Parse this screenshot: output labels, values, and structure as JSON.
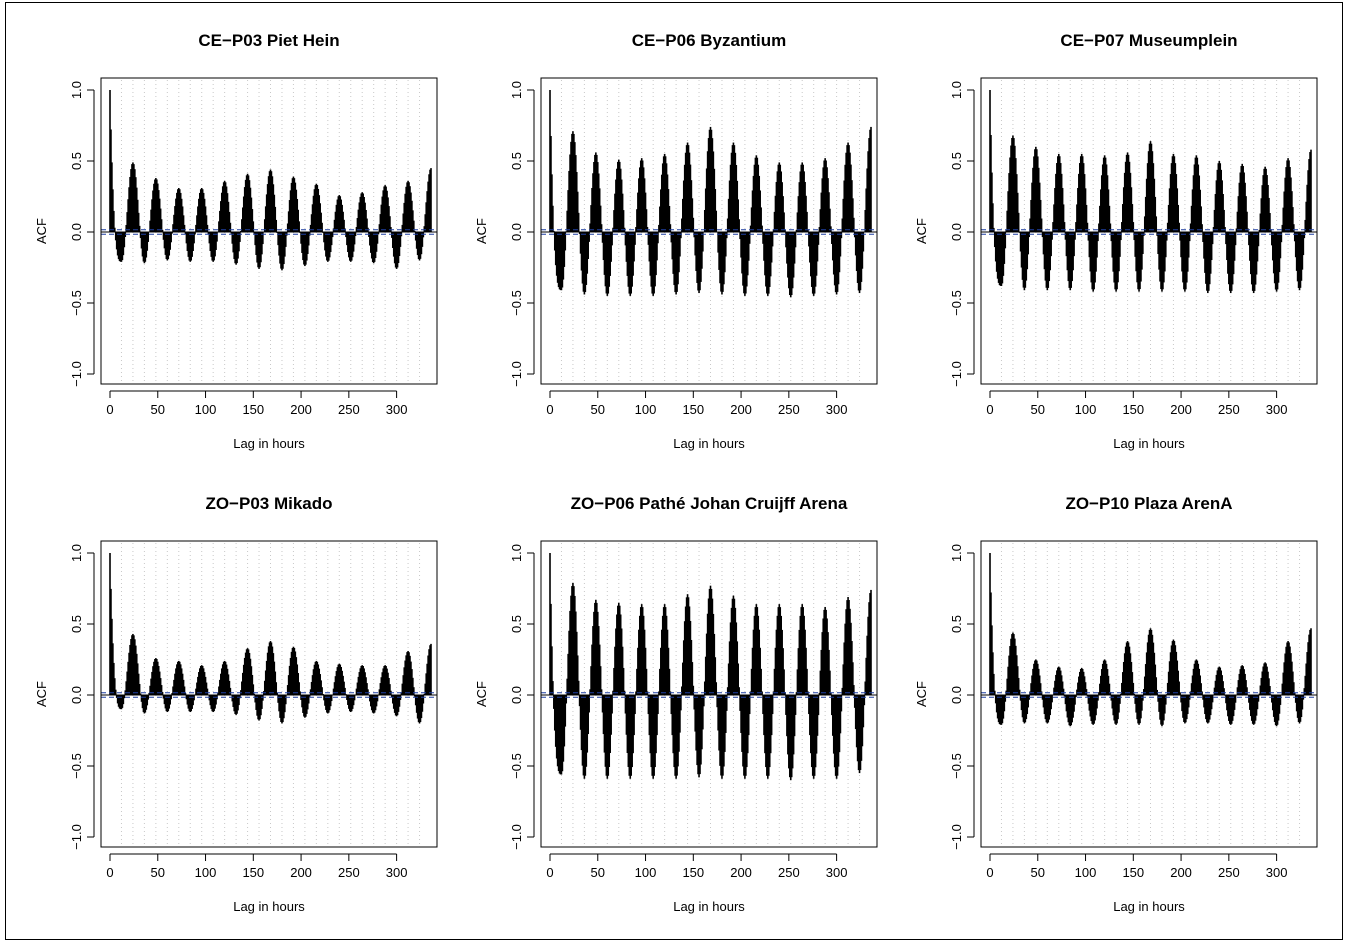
{
  "figure": {
    "xlabel": "Lag in hours",
    "ylabel": "ACF",
    "x_ticks": [
      "0",
      "50",
      "100",
      "150",
      "200",
      "250",
      "300"
    ],
    "y_ticks": [
      "-1.0",
      "-0.5",
      "0.0",
      "0.5",
      "1.0"
    ]
  },
  "colors": {
    "bars": "#000000",
    "zero_line": "#000000",
    "confidence_band": "#1f3fa0",
    "grid": "#c8c8c8"
  },
  "chart_data": [
    {
      "type": "bar",
      "title": "CE−P03 Piet Hein",
      "xlabel": "Lag in hours",
      "ylabel": "ACF",
      "xlim": [
        0,
        336
      ],
      "ylim": [
        -1,
        1
      ],
      "daily_peaks": [
        0.49,
        0.38,
        0.31,
        0.31,
        0.36,
        0.41,
        0.44,
        0.39,
        0.34,
        0.26,
        0.28,
        0.33,
        0.36,
        0.45
      ],
      "daily_troughs": [
        -0.21,
        -0.22,
        -0.2,
        -0.21,
        -0.21,
        -0.23,
        -0.26,
        -0.27,
        -0.24,
        -0.21,
        -0.21,
        -0.22,
        -0.26,
        -0.2
      ]
    },
    {
      "type": "bar",
      "title": "CE−P06 Byzantium",
      "xlabel": "Lag in hours",
      "ylabel": "ACF",
      "xlim": [
        0,
        336
      ],
      "ylim": [
        -1,
        1
      ],
      "daily_peaks": [
        0.71,
        0.56,
        0.51,
        0.52,
        0.55,
        0.63,
        0.74,
        0.63,
        0.54,
        0.49,
        0.49,
        0.52,
        0.63,
        0.74
      ],
      "daily_troughs": [
        -0.41,
        -0.44,
        -0.45,
        -0.45,
        -0.45,
        -0.44,
        -0.43,
        -0.44,
        -0.45,
        -0.45,
        -0.46,
        -0.45,
        -0.44,
        -0.43
      ]
    },
    {
      "type": "bar",
      "title": "CE−P07 Museumplein",
      "xlabel": "Lag in hours",
      "ylabel": "ACF",
      "xlim": [
        0,
        336
      ],
      "ylim": [
        -1,
        1
      ],
      "daily_peaks": [
        0.68,
        0.6,
        0.55,
        0.55,
        0.54,
        0.56,
        0.64,
        0.55,
        0.54,
        0.5,
        0.48,
        0.46,
        0.52,
        0.58
      ],
      "daily_troughs": [
        -0.38,
        -0.41,
        -0.41,
        -0.41,
        -0.42,
        -0.42,
        -0.42,
        -0.42,
        -0.42,
        -0.43,
        -0.43,
        -0.43,
        -0.42,
        -0.41
      ]
    },
    {
      "type": "bar",
      "title": "ZO−P03 Mikado",
      "xlabel": "Lag in hours",
      "ylabel": "ACF",
      "xlim": [
        0,
        336
      ],
      "ylim": [
        -1,
        1
      ],
      "daily_peaks": [
        0.43,
        0.26,
        0.24,
        0.21,
        0.24,
        0.33,
        0.38,
        0.34,
        0.24,
        0.22,
        0.21,
        0.21,
        0.31,
        0.36
      ],
      "daily_troughs": [
        -0.1,
        -0.13,
        -0.12,
        -0.12,
        -0.12,
        -0.14,
        -0.18,
        -0.2,
        -0.16,
        -0.13,
        -0.12,
        -0.13,
        -0.15,
        -0.2
      ]
    },
    {
      "type": "bar",
      "title": "ZO−P06 Pathé Johan Cruijff Arena",
      "xlabel": "Lag in hours",
      "ylabel": "ACF",
      "xlim": [
        0,
        336
      ],
      "ylim": [
        -1,
        1
      ],
      "daily_peaks": [
        0.79,
        0.67,
        0.65,
        0.64,
        0.64,
        0.71,
        0.77,
        0.7,
        0.64,
        0.64,
        0.64,
        0.62,
        0.69,
        0.74
      ],
      "daily_troughs": [
        -0.56,
        -0.59,
        -0.59,
        -0.59,
        -0.59,
        -0.59,
        -0.58,
        -0.59,
        -0.59,
        -0.59,
        -0.6,
        -0.59,
        -0.59,
        -0.55
      ]
    },
    {
      "type": "bar",
      "title": "ZO−P10 Plaza ArenA",
      "xlabel": "Lag in hours",
      "ylabel": "ACF",
      "xlim": [
        0,
        336
      ],
      "ylim": [
        -1,
        1
      ],
      "daily_peaks": [
        0.44,
        0.25,
        0.2,
        0.19,
        0.25,
        0.38,
        0.47,
        0.39,
        0.25,
        0.2,
        0.21,
        0.23,
        0.38,
        0.47
      ],
      "daily_troughs": [
        -0.21,
        -0.2,
        -0.2,
        -0.22,
        -0.21,
        -0.21,
        -0.21,
        -0.22,
        -0.2,
        -0.2,
        -0.21,
        -0.21,
        -0.22,
        -0.2
      ]
    }
  ]
}
